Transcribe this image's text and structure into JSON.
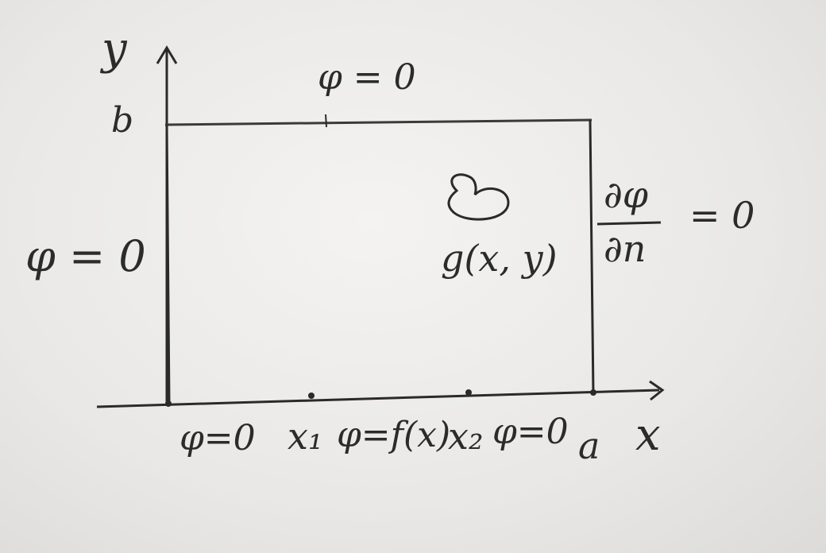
{
  "labels": {
    "y_axis": "y",
    "x_axis": "x",
    "b": "b",
    "a": "a",
    "top_condition": "φ = 0",
    "left_condition": "φ = 0",
    "bottom_left_condition": "φ=0",
    "x1": "x₁",
    "middle_condition": "φ=f(x)",
    "x2": "x₂",
    "bottom_right_condition": "φ=0",
    "source": "g(x, y)",
    "right_numerator": "∂φ",
    "right_denominator": "∂n",
    "right_rhs": "= 0"
  },
  "colors": {
    "ink": "#2a2a2a"
  }
}
